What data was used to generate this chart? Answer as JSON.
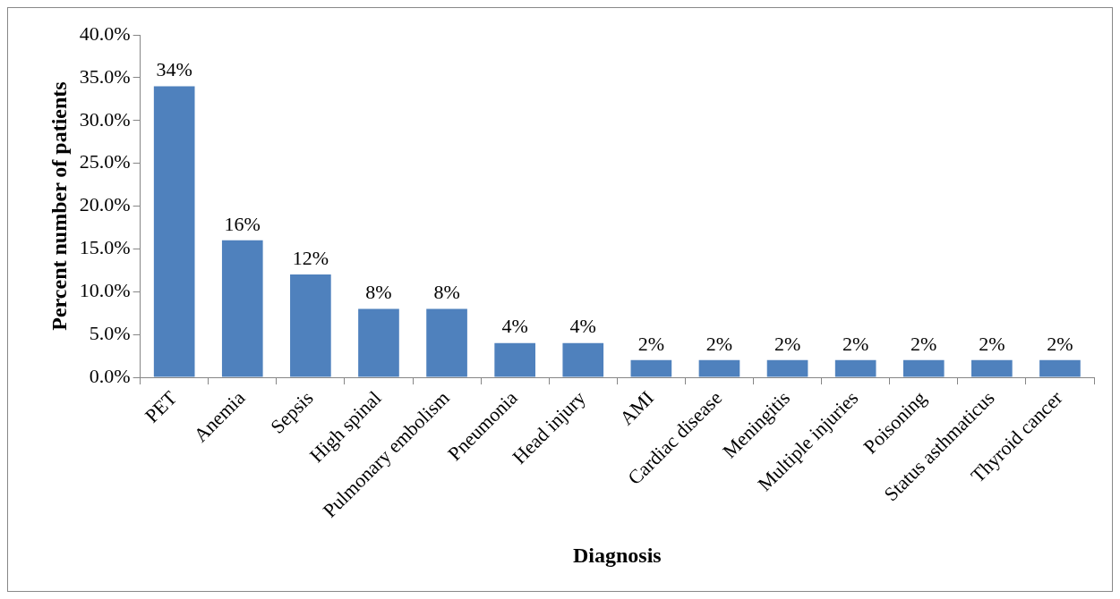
{
  "chart_data": {
    "type": "bar",
    "xlabel": "Diagnosis",
    "ylabel": "Percent number of patients",
    "categories": [
      "PET",
      "Anemia",
      "Sepsis",
      "High spinal",
      "Pulmonary embolism",
      "Pneumonia",
      "Head injury",
      "AMI",
      "Cardiac disease",
      "Meningitis",
      "Multiple injuries",
      "Poisoning",
      "Status asthmaticus",
      "Thyroid cancer"
    ],
    "values": [
      34,
      16,
      12,
      8,
      8,
      4,
      4,
      2,
      2,
      2,
      2,
      2,
      2,
      2
    ],
    "value_labels": [
      "34%",
      "16%",
      "12%",
      "8%",
      "8%",
      "4%",
      "4%",
      "2%",
      "2%",
      "2%",
      "2%",
      "2%",
      "2%",
      "2%"
    ],
    "color": "#4f81bd",
    "ylim": [
      0,
      40
    ],
    "yticks": [
      {
        "value": 0,
        "label": "0.0%"
      },
      {
        "value": 5,
        "label": "5.0%"
      },
      {
        "value": 10,
        "label": "10.0%"
      },
      {
        "value": 15,
        "label": "15.0%"
      },
      {
        "value": 20,
        "label": "20.0%"
      },
      {
        "value": 25,
        "label": "25.0%"
      },
      {
        "value": 30,
        "label": "30.0%"
      },
      {
        "value": 35,
        "label": "35.0%"
      },
      {
        "value": 40,
        "label": "40.0%"
      }
    ],
    "legend": false
  }
}
